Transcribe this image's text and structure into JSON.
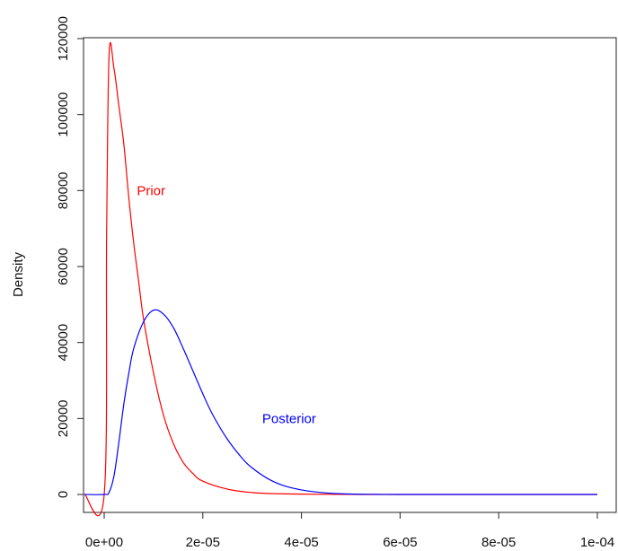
{
  "chart_data": {
    "type": "line",
    "title": "",
    "xlabel": "",
    "ylabel": "Density",
    "xlim": [
      -4e-06,
      0.0001
    ],
    "ylim": [
      -3000,
      120000
    ],
    "grid": false,
    "legend": "none",
    "x_ticks": [
      0,
      2e-05,
      4e-05,
      6e-05,
      8e-05,
      0.0001
    ],
    "x_tick_labels": [
      "0e+00",
      "2e-05",
      "4e-05",
      "6e-05",
      "8e-05",
      "1e-04"
    ],
    "y_ticks": [
      0,
      20000,
      40000,
      60000,
      80000,
      100000,
      120000
    ],
    "y_tick_labels": [
      "0",
      "20000",
      "40000",
      "60000",
      "80000",
      "100000",
      "120000"
    ],
    "series": [
      {
        "name": "Prior",
        "color": "#ff0000",
        "x": [
          -4e-06,
          0,
          5e-07,
          1e-06,
          2e-06,
          3e-06,
          4e-06,
          5e-06,
          6e-06,
          7e-06,
          8e-06,
          1e-05,
          1.2e-05,
          1.4e-05,
          1.6e-05,
          1.8e-05,
          2e-05,
          2.5e-05,
          3e-05,
          3.5e-05,
          4e-05,
          5e-05,
          6e-05,
          0.0001
        ],
        "y": [
          0,
          0,
          70000,
          116000,
          112000,
          102000,
          92000,
          78000,
          66000,
          56000,
          46000,
          32000,
          21000,
          13500,
          8500,
          5500,
          3500,
          1400,
          500,
          200,
          80,
          10,
          0,
          0
        ]
      },
      {
        "name": "Posterior",
        "color": "#0000ff",
        "x": [
          -4e-06,
          0,
          1e-06,
          2e-06,
          3e-06,
          4e-06,
          5e-06,
          6e-06,
          8e-06,
          1e-05,
          1.2e-05,
          1.4e-05,
          1.6e-05,
          1.8e-05,
          2e-05,
          2.2e-05,
          2.5e-05,
          2.8e-05,
          3e-05,
          3.3e-05,
          3.6e-05,
          4e-05,
          4.5e-05,
          5e-05,
          5.5e-05,
          6e-05,
          7e-05,
          0.0001
        ],
        "y": [
          0,
          0,
          600,
          5000,
          14000,
          24000,
          32000,
          38500,
          45500,
          48500,
          47500,
          44000,
          38500,
          32500,
          26500,
          21000,
          14500,
          9500,
          7000,
          4300,
          2500,
          1200,
          400,
          120,
          30,
          5,
          0,
          0
        ]
      }
    ],
    "annotations": [
      {
        "text": "Prior",
        "x": 9.5e-06,
        "y": 80000,
        "color": "#ff0000"
      },
      {
        "text": "Posterior",
        "x": 3.75e-05,
        "y": 20000,
        "color": "#0000ff"
      }
    ]
  }
}
